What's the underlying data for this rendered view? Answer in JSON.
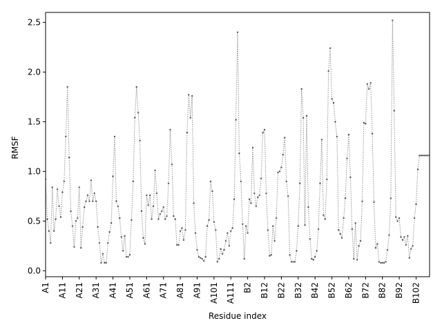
{
  "chart_data": {
    "type": "line",
    "xlabel": "Residue index",
    "ylabel": "RMSF",
    "ylim": [
      -0.06,
      2.6
    ],
    "yticks": [
      0.0,
      0.5,
      1.0,
      1.5,
      2.0,
      2.5
    ],
    "ytick_labels": [
      "0.0",
      "0.5",
      "1.0",
      "1.5",
      "2.0",
      "2.5"
    ],
    "x_count": 229,
    "xticks": [
      0,
      10,
      20,
      30,
      40,
      50,
      60,
      70,
      80,
      90,
      100,
      110,
      120,
      130,
      140,
      150,
      160,
      170,
      180,
      190,
      200,
      210,
      220
    ],
    "xtick_labels": [
      "A1",
      "A11",
      "A21",
      "A31",
      "A41",
      "A51",
      "A61",
      "A71",
      "A81",
      "A91",
      "A101",
      "A111",
      "B2",
      "B12",
      "B22",
      "B32",
      "B42",
      "B52",
      "B62",
      "B72",
      "B82",
      "B92",
      "B102"
    ],
    "line_color": "#808080",
    "marker_color": "#555555",
    "line_style": "dotted",
    "grid": false,
    "anchors": [
      [
        0,
        0.92
      ],
      [
        1,
        0.52
      ],
      [
        3,
        0.28
      ],
      [
        4,
        0.84
      ],
      [
        5,
        0.4
      ],
      [
        6,
        0.52
      ],
      [
        7,
        0.82
      ],
      [
        8,
        0.65
      ],
      [
        9,
        0.54
      ],
      [
        10,
        0.79
      ],
      [
        11,
        0.9
      ],
      [
        12,
        1.35
      ],
      [
        13,
        1.85
      ],
      [
        14,
        1.14
      ],
      [
        15,
        0.6
      ],
      [
        16,
        0.45
      ],
      [
        17,
        0.24
      ],
      [
        18,
        0.5
      ],
      [
        19,
        0.53
      ],
      [
        20,
        0.84
      ],
      [
        21,
        0.23
      ],
      [
        22,
        0.44
      ],
      [
        23,
        0.64
      ],
      [
        24,
        0.7
      ],
      [
        25,
        0.76
      ],
      [
        26,
        0.7
      ],
      [
        27,
        0.91
      ],
      [
        28,
        0.7
      ],
      [
        29,
        0.78
      ],
      [
        30,
        0.7
      ],
      [
        31,
        0.44
      ],
      [
        32,
        0.28
      ],
      [
        33,
        0.08
      ],
      [
        34,
        0.17
      ],
      [
        35,
        0.08
      ],
      [
        36,
        0.08
      ],
      [
        37,
        0.28
      ],
      [
        38,
        0.39
      ],
      [
        39,
        0.48
      ],
      [
        40,
        0.95
      ],
      [
        41,
        1.35
      ],
      [
        42,
        0.7
      ],
      [
        43,
        0.65
      ],
      [
        44,
        0.53
      ],
      [
        45,
        0.34
      ],
      [
        46,
        0.2
      ],
      [
        47,
        0.35
      ],
      [
        48,
        0.14
      ],
      [
        49,
        0.14
      ],
      [
        50,
        0.16
      ],
      [
        51,
        0.51
      ],
      [
        52,
        0.9
      ],
      [
        53,
        1.54
      ],
      [
        54,
        1.85
      ],
      [
        55,
        1.59
      ],
      [
        56,
        1.31
      ],
      [
        57,
        0.6
      ],
      [
        58,
        0.33
      ],
      [
        59,
        0.27
      ],
      [
        60,
        0.76
      ],
      [
        61,
        0.66
      ],
      [
        62,
        0.76
      ],
      [
        63,
        0.52
      ],
      [
        64,
        0.65
      ],
      [
        65,
        1.01
      ],
      [
        66,
        0.78
      ],
      [
        67,
        0.52
      ],
      [
        68,
        0.57
      ],
      [
        69,
        0.6
      ],
      [
        70,
        0.64
      ],
      [
        71,
        0.52
      ],
      [
        72,
        0.55
      ],
      [
        73,
        0.88
      ],
      [
        74,
        1.42
      ],
      [
        75,
        1.07
      ],
      [
        76,
        0.55
      ],
      [
        77,
        0.52
      ],
      [
        78,
        0.26
      ],
      [
        79,
        0.26
      ],
      [
        80,
        0.4
      ],
      [
        81,
        0.43
      ],
      [
        82,
        0.31
      ],
      [
        83,
        0.41
      ],
      [
        84,
        1.39
      ],
      [
        85,
        1.77
      ],
      [
        86,
        1.54
      ],
      [
        87,
        1.76
      ],
      [
        88,
        0.68
      ],
      [
        89,
        0.38
      ],
      [
        90,
        0.21
      ],
      [
        91,
        0.14
      ],
      [
        92,
        0.13
      ],
      [
        93,
        0.12
      ],
      [
        94,
        0.1
      ],
      [
        95,
        0.14
      ],
      [
        96,
        0.45
      ],
      [
        97,
        0.51
      ],
      [
        98,
        0.9
      ],
      [
        99,
        0.8
      ],
      [
        100,
        0.49
      ],
      [
        101,
        0.41
      ],
      [
        102,
        0.09
      ],
      [
        103,
        0.12
      ],
      [
        104,
        0.22
      ],
      [
        105,
        0.17
      ],
      [
        106,
        0.21
      ],
      [
        107,
        0.3
      ],
      [
        108,
        0.38
      ],
      [
        109,
        0.25
      ],
      [
        110,
        0.4
      ],
      [
        111,
        0.43
      ],
      [
        112,
        0.72
      ],
      [
        113,
        1.52
      ],
      [
        114,
        2.4
      ],
      [
        115,
        1.18
      ],
      [
        116,
        0.9
      ],
      [
        117,
        0.47
      ],
      [
        118,
        0.12
      ],
      [
        119,
        0.45
      ],
      [
        120,
        0.38
      ],
      [
        121,
        0.72
      ],
      [
        122,
        0.68
      ],
      [
        123,
        1.24
      ],
      [
        124,
        0.78
      ],
      [
        125,
        0.65
      ],
      [
        126,
        0.74
      ],
      [
        127,
        0.76
      ],
      [
        128,
        0.93
      ],
      [
        129,
        1.39
      ],
      [
        130,
        1.42
      ],
      [
        131,
        0.78
      ],
      [
        132,
        0.41
      ],
      [
        133,
        0.15
      ],
      [
        134,
        0.16
      ],
      [
        135,
        0.45
      ],
      [
        136,
        0.3
      ],
      [
        137,
        0.53
      ],
      [
        138,
        0.99
      ],
      [
        139,
        1.0
      ],
      [
        140,
        1.04
      ],
      [
        141,
        1.17
      ],
      [
        142,
        1.34
      ],
      [
        143,
        0.9
      ],
      [
        144,
        0.75
      ],
      [
        145,
        0.16
      ],
      [
        146,
        0.09
      ],
      [
        147,
        0.09
      ],
      [
        148,
        0.09
      ],
      [
        149,
        0.2
      ],
      [
        150,
        0.45
      ],
      [
        151,
        0.88
      ],
      [
        152,
        1.83
      ],
      [
        153,
        1.54
      ],
      [
        154,
        0.46
      ],
      [
        155,
        1.56
      ],
      [
        156,
        0.64
      ],
      [
        157,
        0.32
      ],
      [
        158,
        0.12
      ],
      [
        159,
        0.11
      ],
      [
        160,
        0.14
      ],
      [
        161,
        0.2
      ],
      [
        162,
        0.42
      ],
      [
        163,
        0.88
      ],
      [
        164,
        1.32
      ],
      [
        165,
        0.56
      ],
      [
        166,
        0.52
      ],
      [
        167,
        0.92
      ],
      [
        168,
        2.01
      ],
      [
        169,
        2.24
      ],
      [
        170,
        1.73
      ],
      [
        171,
        1.69
      ],
      [
        172,
        1.5
      ],
      [
        173,
        1.35
      ],
      [
        174,
        0.41
      ],
      [
        175,
        0.37
      ],
      [
        176,
        0.33
      ],
      [
        177,
        0.53
      ],
      [
        178,
        0.73
      ],
      [
        179,
        1.13
      ],
      [
        180,
        1.37
      ],
      [
        181,
        0.94
      ],
      [
        182,
        0.42
      ],
      [
        183,
        0.12
      ],
      [
        184,
        0.48
      ],
      [
        185,
        0.11
      ],
      [
        186,
        0.25
      ],
      [
        187,
        0.3
      ],
      [
        188,
        0.7
      ],
      [
        189,
        1.49
      ],
      [
        190,
        1.48
      ],
      [
        191,
        1.88
      ],
      [
        192,
        1.83
      ],
      [
        193,
        1.89
      ],
      [
        194,
        1.38
      ],
      [
        195,
        0.69
      ],
      [
        196,
        0.23
      ],
      [
        197,
        0.27
      ],
      [
        198,
        0.09
      ],
      [
        199,
        0.08
      ],
      [
        200,
        0.08
      ],
      [
        201,
        0.08
      ],
      [
        202,
        0.09
      ],
      [
        203,
        0.21
      ],
      [
        204,
        0.36
      ],
      [
        205,
        0.73
      ],
      [
        206,
        2.52
      ],
      [
        207,
        1.61
      ],
      [
        208,
        0.54
      ],
      [
        209,
        0.5
      ],
      [
        210,
        0.53
      ],
      [
        211,
        0.34
      ],
      [
        212,
        0.31
      ],
      [
        213,
        0.34
      ],
      [
        214,
        0.26
      ],
      [
        215,
        0.35
      ],
      [
        216,
        0.13
      ],
      [
        217,
        0.22
      ],
      [
        218,
        0.25
      ],
      [
        219,
        0.53
      ],
      [
        220,
        0.67
      ],
      [
        221,
        1.02
      ],
      [
        222,
        1.16
      ]
    ]
  }
}
